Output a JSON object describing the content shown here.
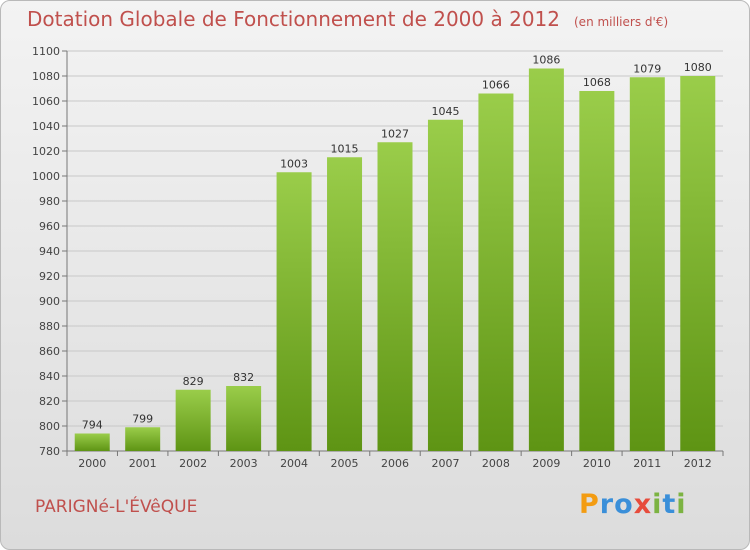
{
  "title": "Dotation Globale de Fonctionnement de 2000 à 2012",
  "subtitle": "(en milliers d'€)",
  "commune": "PARIGNé-L'ÉVêQUE",
  "logo": {
    "text": "Proxiti",
    "letters": [
      "P",
      "r",
      "o",
      "x",
      "i",
      "t",
      "i"
    ],
    "colors": [
      "#f39c12",
      "#3a8fd9",
      "#3a8fd9",
      "#e74c3c",
      "#7cb342",
      "#3a8fd9",
      "#7cb342"
    ]
  },
  "colors": {
    "title": "#c0504d",
    "bar_light": "#9acd4a",
    "bar_dark": "#5e9414",
    "grid": "#c8c8c8"
  },
  "chart_data": {
    "type": "bar",
    "categories": [
      "2000",
      "2001",
      "2002",
      "2003",
      "2004",
      "2005",
      "2006",
      "2007",
      "2008",
      "2009",
      "2010",
      "2011",
      "2012"
    ],
    "values": [
      794,
      799,
      829,
      832,
      1003,
      1015,
      1027,
      1045,
      1066,
      1086,
      1068,
      1079,
      1080
    ],
    "data_labels": [
      "794",
      "799",
      "829",
      "832",
      "1003",
      "1015",
      "1027",
      "1045",
      "1066",
      "1086",
      "1068",
      "1079",
      "1080"
    ],
    "title": "Dotation Globale de Fonctionnement de 2000 à 2012",
    "xlabel": "",
    "ylabel": "",
    "ylim": [
      780,
      1100
    ],
    "yticks": [
      780,
      800,
      820,
      840,
      860,
      880,
      900,
      920,
      940,
      960,
      980,
      1000,
      1020,
      1040,
      1060,
      1080,
      1100
    ],
    "grid": true,
    "legend": "none"
  }
}
